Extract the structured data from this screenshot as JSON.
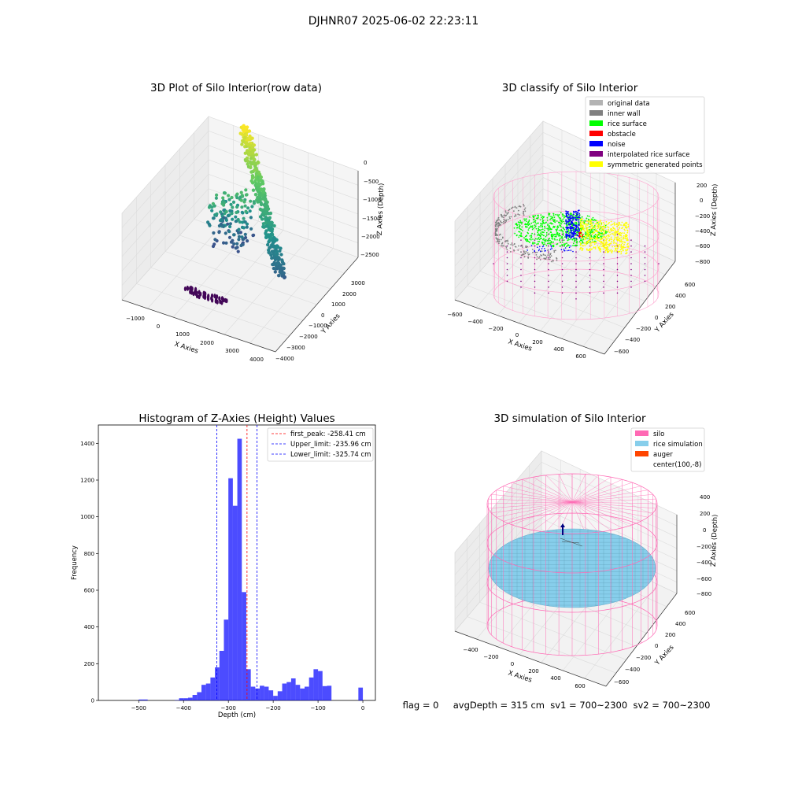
{
  "suptitle": "DJHNR07 2025-06-02 22:23:11",
  "panels": {
    "raw": {
      "title": "3D Plot of Silo Interior(row data)",
      "xlabel": "X Axies",
      "ylabel": "Y Axies",
      "zlabel": "Z Axies (Depth)",
      "xticks": [
        "−1000",
        "0",
        "1000",
        "2000",
        "3000",
        "4000"
      ],
      "yticks": [
        "3000",
        "2000",
        "1000",
        "0",
        "−1000",
        "−2000",
        "−3000",
        "−4000"
      ],
      "zticks": [
        "0",
        "−500",
        "−1000",
        "−1500",
        "−2000",
        "−2500"
      ]
    },
    "classify": {
      "title": "3D classify of Silo Interior",
      "xlabel": "X Axies",
      "ylabel": "Y Axies",
      "zlabel": "Z Axies (Depth)",
      "xticks": [
        "−600",
        "−400",
        "−200",
        "0",
        "200",
        "400",
        "600"
      ],
      "yticks": [
        "600",
        "400",
        "200",
        "0",
        "−200",
        "−400",
        "−600"
      ],
      "zticks": [
        "200",
        "0",
        "−200",
        "−400",
        "−600",
        "−800"
      ],
      "legend": [
        {
          "label": "original data",
          "color": "#b3b3b3"
        },
        {
          "label": "inner wall",
          "color": "#808080"
        },
        {
          "label": "rice surface",
          "color": "#00ff00"
        },
        {
          "label": "obstacle",
          "color": "#ff0000"
        },
        {
          "label": "noise",
          "color": "#0000ff"
        },
        {
          "label": "interpolated rice surface",
          "color": "#800080"
        },
        {
          "label": "symmetric generated points",
          "color": "#ffff00"
        }
      ]
    },
    "simulation": {
      "title": "3D simulation of Silo Interior",
      "xlabel": "X Axies",
      "ylabel": "Y Axies",
      "zlabel": "Z Axies (Depth)",
      "xticks": [
        "−400",
        "−200",
        "0",
        "200",
        "400",
        "600"
      ],
      "yticks": [
        "600",
        "400",
        "200",
        "0",
        "−200",
        "−400",
        "−600"
      ],
      "zticks": [
        "400",
        "200",
        "0",
        "−200",
        "−400",
        "−600",
        "−800"
      ],
      "legend": [
        {
          "label": "silo",
          "color": "#ff69b4"
        },
        {
          "label": "rice simulation",
          "color": "#87ceeb"
        },
        {
          "label": "auger",
          "color": "#ff4500"
        },
        {
          "label": "center(100,-8)",
          "color": ""
        }
      ]
    }
  },
  "status_line": "flag = 0     avgDepth = 315 cm  sv1 = 700~2300  sv2 = 700~2300",
  "chart_data": [
    {
      "type": "scatter",
      "title": "3D Plot of Silo Interior(row data)",
      "xlabel": "X Axies",
      "ylabel": "Y Axies",
      "zlabel": "Z Axies (Depth)",
      "xlim": [
        -1500,
        4500
      ],
      "ylim": [
        -4000,
        3500
      ],
      "zlim": [
        -3000,
        0
      ],
      "colormap": "viridis",
      "grid": true,
      "clusters": [
        {
          "x": 300,
          "y": 2500,
          "z": -300
        },
        {
          "x": 1000,
          "y": 2000,
          "z": -600
        },
        {
          "x": 2000,
          "y": 1200,
          "z": -1000
        },
        {
          "x": 2900,
          "y": 0,
          "z": -1600
        },
        {
          "x": 3300,
          "y": -1200,
          "z": -2000
        },
        {
          "x": 200,
          "y": 300,
          "z": -1300
        },
        {
          "x": 800,
          "y": -600,
          "z": -1800
        },
        {
          "x": 1500,
          "y": -2500,
          "z": -3000
        }
      ]
    },
    {
      "type": "scatter",
      "title": "3D classify of Silo Interior",
      "xlabel": "X Axies",
      "ylabel": "Y Axies",
      "zlabel": "Z Axies (Depth)",
      "xlim": [
        -700,
        700
      ],
      "ylim": [
        -700,
        700
      ],
      "zlim": [
        -900,
        300
      ],
      "grid": true,
      "legend_position": "top-right",
      "series": [
        {
          "name": "original data",
          "color": "#b3b3b3"
        },
        {
          "name": "inner wall",
          "color": "#808080"
        },
        {
          "name": "rice surface",
          "color": "#00ff00"
        },
        {
          "name": "obstacle",
          "color": "#ff0000"
        },
        {
          "name": "noise",
          "color": "#0000ff"
        },
        {
          "name": "interpolated rice surface",
          "color": "#800080"
        },
        {
          "name": "symmetric generated points",
          "color": "#ffff00"
        }
      ],
      "silo_radius": 650,
      "silo_z_range": [
        -900,
        200
      ],
      "rice_surface_z": -300
    },
    {
      "type": "bar",
      "title": "Histogram of Z-Axies (Height) Values",
      "xlabel": "Depth (cm)",
      "ylabel": "Frequency",
      "xlim": [
        -590,
        28
      ],
      "ylim": [
        0,
        1500
      ],
      "xticks": [
        -500,
        -400,
        -300,
        -200,
        -100,
        0
      ],
      "yticks": [
        0,
        200,
        400,
        600,
        800,
        1000,
        1200,
        1400
      ],
      "bar_color": "#0000ff",
      "bin_width": 10,
      "bins": [
        [
          -500,
          5
        ],
        [
          -490,
          5
        ],
        [
          -420,
          2
        ],
        [
          -410,
          12
        ],
        [
          -400,
          12
        ],
        [
          -390,
          15
        ],
        [
          -380,
          30
        ],
        [
          -370,
          45
        ],
        [
          -360,
          85
        ],
        [
          -350,
          92
        ],
        [
          -340,
          125
        ],
        [
          -330,
          180
        ],
        [
          -320,
          270
        ],
        [
          -310,
          440
        ],
        [
          -300,
          1210
        ],
        [
          -290,
          1060
        ],
        [
          -280,
          1425
        ],
        [
          -270,
          590
        ],
        [
          -260,
          170
        ],
        [
          -250,
          75
        ],
        [
          -240,
          65
        ],
        [
          -230,
          80
        ],
        [
          -220,
          75
        ],
        [
          -210,
          55
        ],
        [
          -200,
          25
        ],
        [
          -190,
          50
        ],
        [
          -180,
          92
        ],
        [
          -170,
          100
        ],
        [
          -160,
          120
        ],
        [
          -150,
          85
        ],
        [
          -140,
          65
        ],
        [
          -130,
          75
        ],
        [
          -120,
          125
        ],
        [
          -110,
          170
        ],
        [
          -100,
          160
        ],
        [
          -90,
          78
        ],
        [
          -80,
          80
        ],
        [
          -10,
          70
        ]
      ],
      "vlines": [
        {
          "label": "first_peak: -258.41 cm",
          "x": -258.41,
          "color": "#ff0000"
        },
        {
          "label": "Upper_limit: -235.96 cm",
          "x": -235.96,
          "color": "#0000ff"
        },
        {
          "label": "Lower_limit: -325.74 cm",
          "x": -325.74,
          "color": "#0000ff"
        }
      ],
      "legend_position": "top-right"
    },
    {
      "type": "surface",
      "title": "3D simulation of Silo Interior",
      "xlabel": "X Axies",
      "ylabel": "Y Axies",
      "zlabel": "Z Axies (Depth)",
      "xlim": [
        -500,
        700
      ],
      "ylim": [
        -700,
        700
      ],
      "zlim": [
        -900,
        500
      ],
      "grid": true,
      "legend_position": "top-right",
      "series": [
        {
          "name": "silo",
          "color": "#ff69b4"
        },
        {
          "name": "rice simulation",
          "color": "#87ceeb"
        },
        {
          "name": "auger",
          "color": "#ff4500"
        },
        {
          "name": "center(100,-8)"
        }
      ]
    }
  ]
}
